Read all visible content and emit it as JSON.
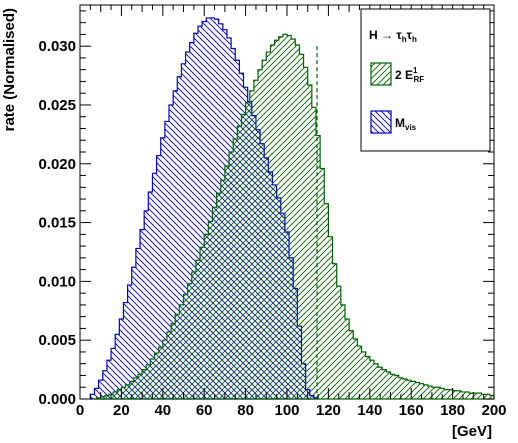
{
  "chart_data": {
    "type": "histogram",
    "xlabel": "[GeV]",
    "ylabel": "rate (Normalised)",
    "xlim": [
      0,
      200
    ],
    "ylim": [
      0,
      0.0335
    ],
    "x_ticks": [
      "0",
      "20",
      "40",
      "60",
      "80",
      "100",
      "120",
      "140",
      "160",
      "180",
      "200"
    ],
    "y_ticks": [
      "0.000",
      "0.005",
      "0.010",
      "0.015",
      "0.020",
      "0.025",
      "0.030"
    ],
    "y_tick_values": [
      0,
      0.005,
      0.01,
      0.015,
      0.02,
      0.025,
      0.03
    ],
    "grid": false,
    "legend_position": "top-right",
    "legend": {
      "header": {
        "main": "H → τ",
        "sub1": "h",
        "mid": "τ",
        "sub2": "h"
      },
      "entries": [
        {
          "main": "2 E",
          "sup": "1",
          "sub": "RF",
          "color": "#006400",
          "hatch": "diagonal-up"
        },
        {
          "main": "M",
          "sub": "vis",
          "color": "#0000cc",
          "hatch": "diagonal-down"
        }
      ]
    },
    "vertical_marker": {
      "x": 114.5,
      "y_top": 0.03,
      "color": "#006400",
      "style": "dashed"
    },
    "series": [
      {
        "color": "#0000cc",
        "edges": [
          5,
          115
        ],
        "values": [
          0.0004,
          0.0009,
          0.0016,
          0.0024,
          0.0033,
          0.0043,
          0.0055,
          0.0068,
          0.0082,
          0.0097,
          0.0112,
          0.0128,
          0.0144,
          0.016,
          0.0176,
          0.0192,
          0.0207,
          0.0222,
          0.0236,
          0.025,
          0.0262,
          0.0274,
          0.0285,
          0.0295,
          0.0303,
          0.0311,
          0.0317,
          0.0321,
          0.0324,
          0.0324,
          0.0323,
          0.0319,
          0.0314,
          0.0307,
          0.0298,
          0.0288,
          0.0277,
          0.0265,
          0.0253,
          0.0241,
          0.0229,
          0.0217,
          0.0205,
          0.0193,
          0.0182,
          0.0171,
          0.0158,
          0.0142,
          0.012,
          0.0094,
          0.0062,
          0.003,
          0.0008,
          0.0003,
          0.0001
        ]
      },
      {
        "color": "#006400",
        "edges": [
          6,
          200
        ],
        "values": [
          0.0,
          0.0001,
          0.0002,
          0.0003,
          0.0004,
          0.0006,
          0.0008,
          0.001,
          0.0012,
          0.0015,
          0.0018,
          0.0021,
          0.0025,
          0.0029,
          0.0034,
          0.0039,
          0.0044,
          0.005,
          0.0057,
          0.0064,
          0.0072,
          0.008,
          0.0089,
          0.0098,
          0.0108,
          0.0118,
          0.0129,
          0.014,
          0.0151,
          0.0163,
          0.0175,
          0.0186,
          0.0198,
          0.021,
          0.0221,
          0.0232,
          0.0242,
          0.0252,
          0.0262,
          0.0271,
          0.028,
          0.0288,
          0.0295,
          0.0301,
          0.0305,
          0.0308,
          0.031,
          0.0309,
          0.0306,
          0.0301,
          0.0293,
          0.0282,
          0.0267,
          0.0248,
          0.0224,
          0.0196,
          0.0166,
          0.0138,
          0.0115,
          0.0096,
          0.008,
          0.0068,
          0.0058,
          0.0051,
          0.0045,
          0.004,
          0.0036,
          0.0033,
          0.003,
          0.0027,
          0.0025,
          0.0023,
          0.0021,
          0.002,
          0.0018,
          0.0017,
          0.0016,
          0.0015,
          0.0014,
          0.0013,
          0.0012,
          0.0011,
          0.001,
          0.001,
          0.0009,
          0.0008,
          0.0008,
          0.0007,
          0.0007,
          0.0006,
          0.0006,
          0.0005,
          0.0005,
          0.0005,
          0.0004,
          0.0004,
          0.0003
        ]
      }
    ]
  }
}
